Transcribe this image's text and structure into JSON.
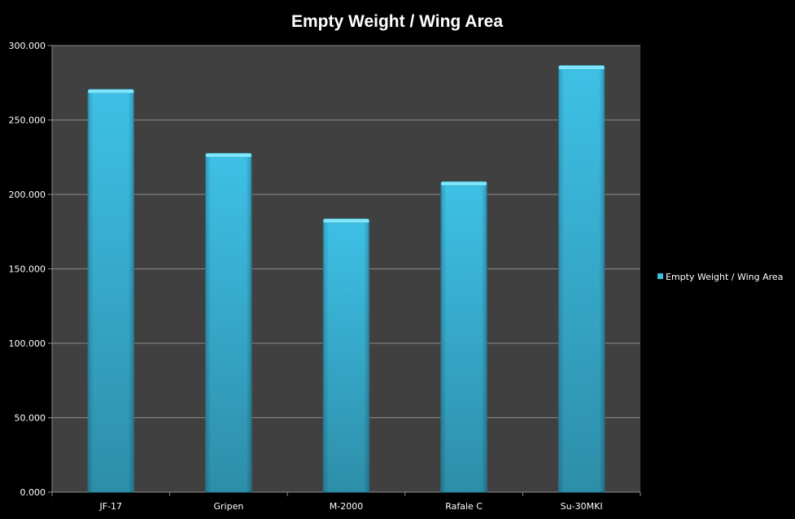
{
  "chart_data": {
    "type": "bar",
    "title": "Empty Weight / Wing Area",
    "categories": [
      "JF-17",
      "Gripen",
      "M-2000",
      "Rafale C",
      "Su-30MKI"
    ],
    "series": [
      {
        "name": "Empty Weight / Wing Area",
        "values": [
          269,
          226,
          182,
          207,
          285
        ]
      }
    ],
    "ylim": [
      0,
      300
    ],
    "yticks": [
      "0.000",
      "50.000",
      "100.000",
      "150.000",
      "200.000",
      "250.000",
      "300.000"
    ],
    "grid": true,
    "legend_position": "right",
    "colors": {
      "background": "#000000",
      "plot_area": "#404040",
      "gridline": "#8a8a8a",
      "bar": "#3bbde0",
      "bar_top": "#7fe6fb",
      "text": "#ffffff"
    }
  }
}
